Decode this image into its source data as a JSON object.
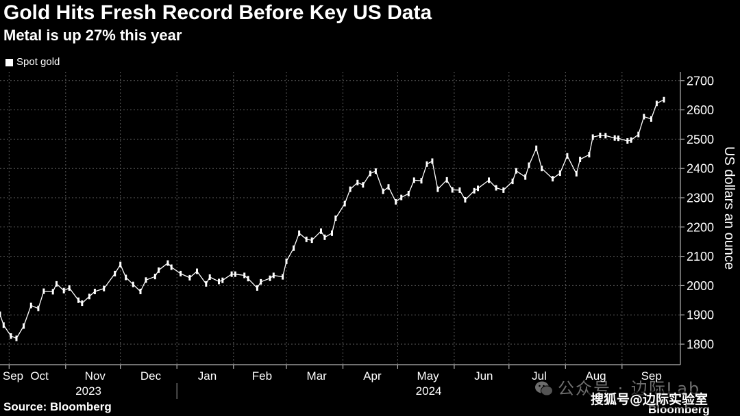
{
  "chart_data": {
    "type": "line",
    "title": "Gold Hits Fresh Record Before Key US Data",
    "subtitle": "Metal is up 27% this year",
    "ylabel": "US dollars an ounce",
    "y_axis_side": "right",
    "ylim": [
      1730,
      2730
    ],
    "y_ticks": [
      1800,
      1900,
      2000,
      2100,
      2200,
      2300,
      2400,
      2500,
      2600,
      2700
    ],
    "xlim": [
      "2023-09-26",
      "2024-10-03"
    ],
    "x_tick_labels": [
      "Sep",
      "Oct",
      "Nov",
      "Dec",
      "Jan",
      "Feb",
      "Mar",
      "Apr",
      "May",
      "Jun",
      "Jul",
      "Aug",
      "Sep"
    ],
    "year_labels": [
      "2023",
      "2024"
    ],
    "grid": true,
    "legend_position": "top-left",
    "series": [
      {
        "name": "Spot gold",
        "color": "#ffffff",
        "x": [
          "2023-09-26",
          "2023-09-28",
          "2023-10-02",
          "2023-10-05",
          "2023-10-09",
          "2023-10-13",
          "2023-10-17",
          "2023-10-20",
          "2023-10-25",
          "2023-10-27",
          "2023-10-31",
          "2023-11-03",
          "2023-11-08",
          "2023-11-10",
          "2023-11-14",
          "2023-11-17",
          "2023-11-22",
          "2023-11-28",
          "2023-12-01",
          "2023-12-04",
          "2023-12-08",
          "2023-12-12",
          "2023-12-15",
          "2023-12-20",
          "2023-12-22",
          "2023-12-27",
          "2023-12-29",
          "2024-01-03",
          "2024-01-08",
          "2024-01-12",
          "2024-01-17",
          "2024-01-19",
          "2024-01-24",
          "2024-01-26",
          "2024-01-31",
          "2024-02-02",
          "2024-02-07",
          "2024-02-09",
          "2024-02-14",
          "2024-02-16",
          "2024-02-21",
          "2024-02-23",
          "2024-02-28",
          "2024-03-01",
          "2024-03-05",
          "2024-03-08",
          "2024-03-12",
          "2024-03-15",
          "2024-03-20",
          "2024-03-22",
          "2024-03-26",
          "2024-03-28",
          "2024-04-02",
          "2024-04-05",
          "2024-04-09",
          "2024-04-12",
          "2024-04-16",
          "2024-04-19",
          "2024-04-23",
          "2024-04-26",
          "2024-04-30",
          "2024-05-03",
          "2024-05-07",
          "2024-05-10",
          "2024-05-14",
          "2024-05-17",
          "2024-05-20",
          "2024-05-23",
          "2024-05-28",
          "2024-05-31",
          "2024-06-04",
          "2024-06-07",
          "2024-06-12",
          "2024-06-14",
          "2024-06-20",
          "2024-06-24",
          "2024-06-28",
          "2024-07-03",
          "2024-07-05",
          "2024-07-10",
          "2024-07-12",
          "2024-07-16",
          "2024-07-19",
          "2024-07-25",
          "2024-07-29",
          "2024-08-02",
          "2024-08-07",
          "2024-08-09",
          "2024-08-14",
          "2024-08-16",
          "2024-08-20",
          "2024-08-23",
          "2024-08-28",
          "2024-08-30",
          "2024-09-04",
          "2024-09-06",
          "2024-09-10",
          "2024-09-13",
          "2024-09-17",
          "2024-09-20",
          "2024-09-24"
        ],
        "y": [
          1902,
          1865,
          1828,
          1820,
          1862,
          1932,
          1922,
          1981,
          1979,
          2006,
          1983,
          1992,
          1950,
          1940,
          1963,
          1980,
          1990,
          2041,
          2072,
          2028,
          2004,
          1980,
          2019,
          2031,
          2053,
          2077,
          2063,
          2041,
          2027,
          2049,
          2006,
          2029,
          2014,
          2018,
          2039,
          2039,
          2035,
          2024,
          1992,
          2013,
          2025,
          2035,
          2030,
          2083,
          2128,
          2179,
          2158,
          2155,
          2186,
          2165,
          2179,
          2230,
          2280,
          2329,
          2352,
          2344,
          2383,
          2391,
          2322,
          2337,
          2286,
          2301,
          2314,
          2360,
          2358,
          2415,
          2425,
          2329,
          2361,
          2327,
          2326,
          2293,
          2324,
          2332,
          2360,
          2334,
          2326,
          2356,
          2392,
          2371,
          2411,
          2469,
          2400,
          2365,
          2384,
          2443,
          2382,
          2431,
          2447,
          2507,
          2513,
          2512,
          2504,
          2503,
          2494,
          2497,
          2516,
          2577,
          2569,
          2622,
          2635
        ]
      }
    ]
  },
  "source": "Source: Bloomberg",
  "watermarks": {
    "wechat_icon": "wechat-icon",
    "wechat_text": "公众号 · 边际Lab",
    "sohu_text": "搜狐号@边际实验室",
    "logo_text": "Bloomberg"
  },
  "colors": {
    "background": "#000000",
    "text": "#ffffff",
    "grid": "#5c5c5c",
    "axis": "#b5b5b5"
  }
}
